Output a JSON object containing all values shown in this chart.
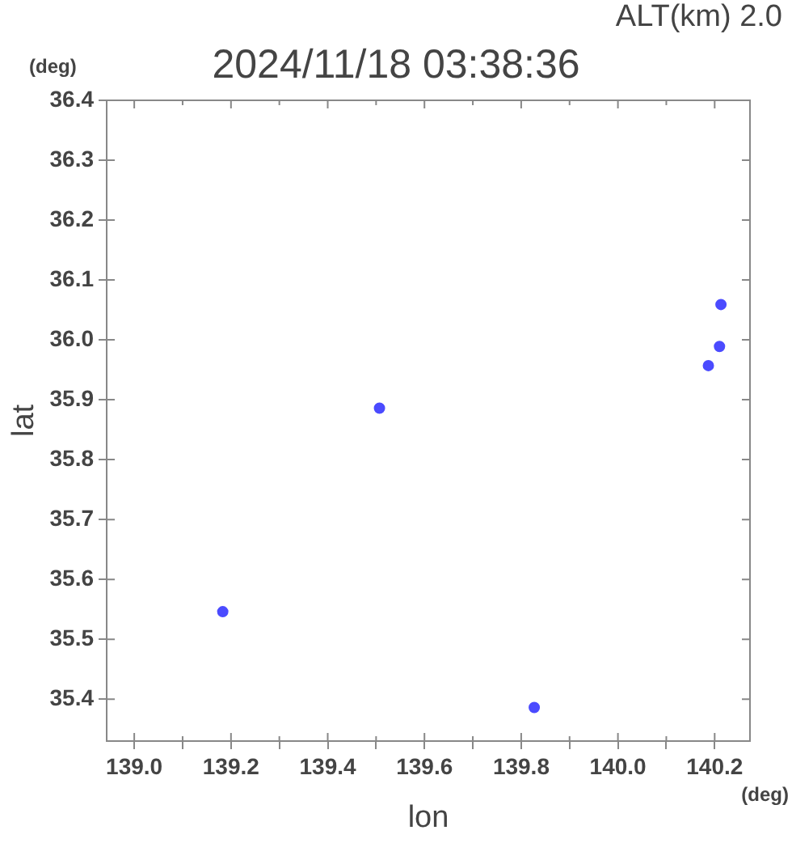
{
  "chart_data": {
    "type": "scatter",
    "title": "2024/11/18 03:38:36",
    "subtitle": "ALT(km)  2.0",
    "xlabel": "lon",
    "ylabel": "lat",
    "annotations": [
      "(deg)",
      "(deg)"
    ],
    "series": [
      {
        "color": "#4b4bff",
        "x": [
          139.183,
          139.507,
          139.827,
          140.187,
          140.21,
          140.213
        ],
        "values": [
          35.546,
          35.886,
          35.386,
          35.957,
          35.989,
          36.059
        ]
      }
    ],
    "xlim": [
      138.943,
      140.273
    ],
    "xticks": [
      {
        "value": 139.0,
        "label": "139.0"
      },
      {
        "value": 139.1,
        "label": null
      },
      {
        "value": 139.2,
        "label": "139.2"
      },
      {
        "value": 139.3,
        "label": null
      },
      {
        "value": 139.4,
        "label": "139.4"
      },
      {
        "value": 139.5,
        "label": null
      },
      {
        "value": 139.6,
        "label": "139.6"
      },
      {
        "value": 139.7,
        "label": null
      },
      {
        "value": 139.8,
        "label": "139.8"
      },
      {
        "value": 139.9,
        "label": null
      },
      {
        "value": 140.0,
        "label": "140.0"
      },
      {
        "value": 140.1,
        "label": null
      },
      {
        "value": 140.2,
        "label": "140.2"
      }
    ],
    "ylim": [
      35.33,
      36.4
    ],
    "yticks": [
      35.4,
      35.5,
      35.6,
      35.7,
      35.8,
      35.9,
      {
        "value": 36.0,
        "label": "36.0"
      },
      36.1,
      36.2,
      36.3,
      36.4
    ],
    "marker": "circle",
    "grid": false,
    "legend": false
  }
}
